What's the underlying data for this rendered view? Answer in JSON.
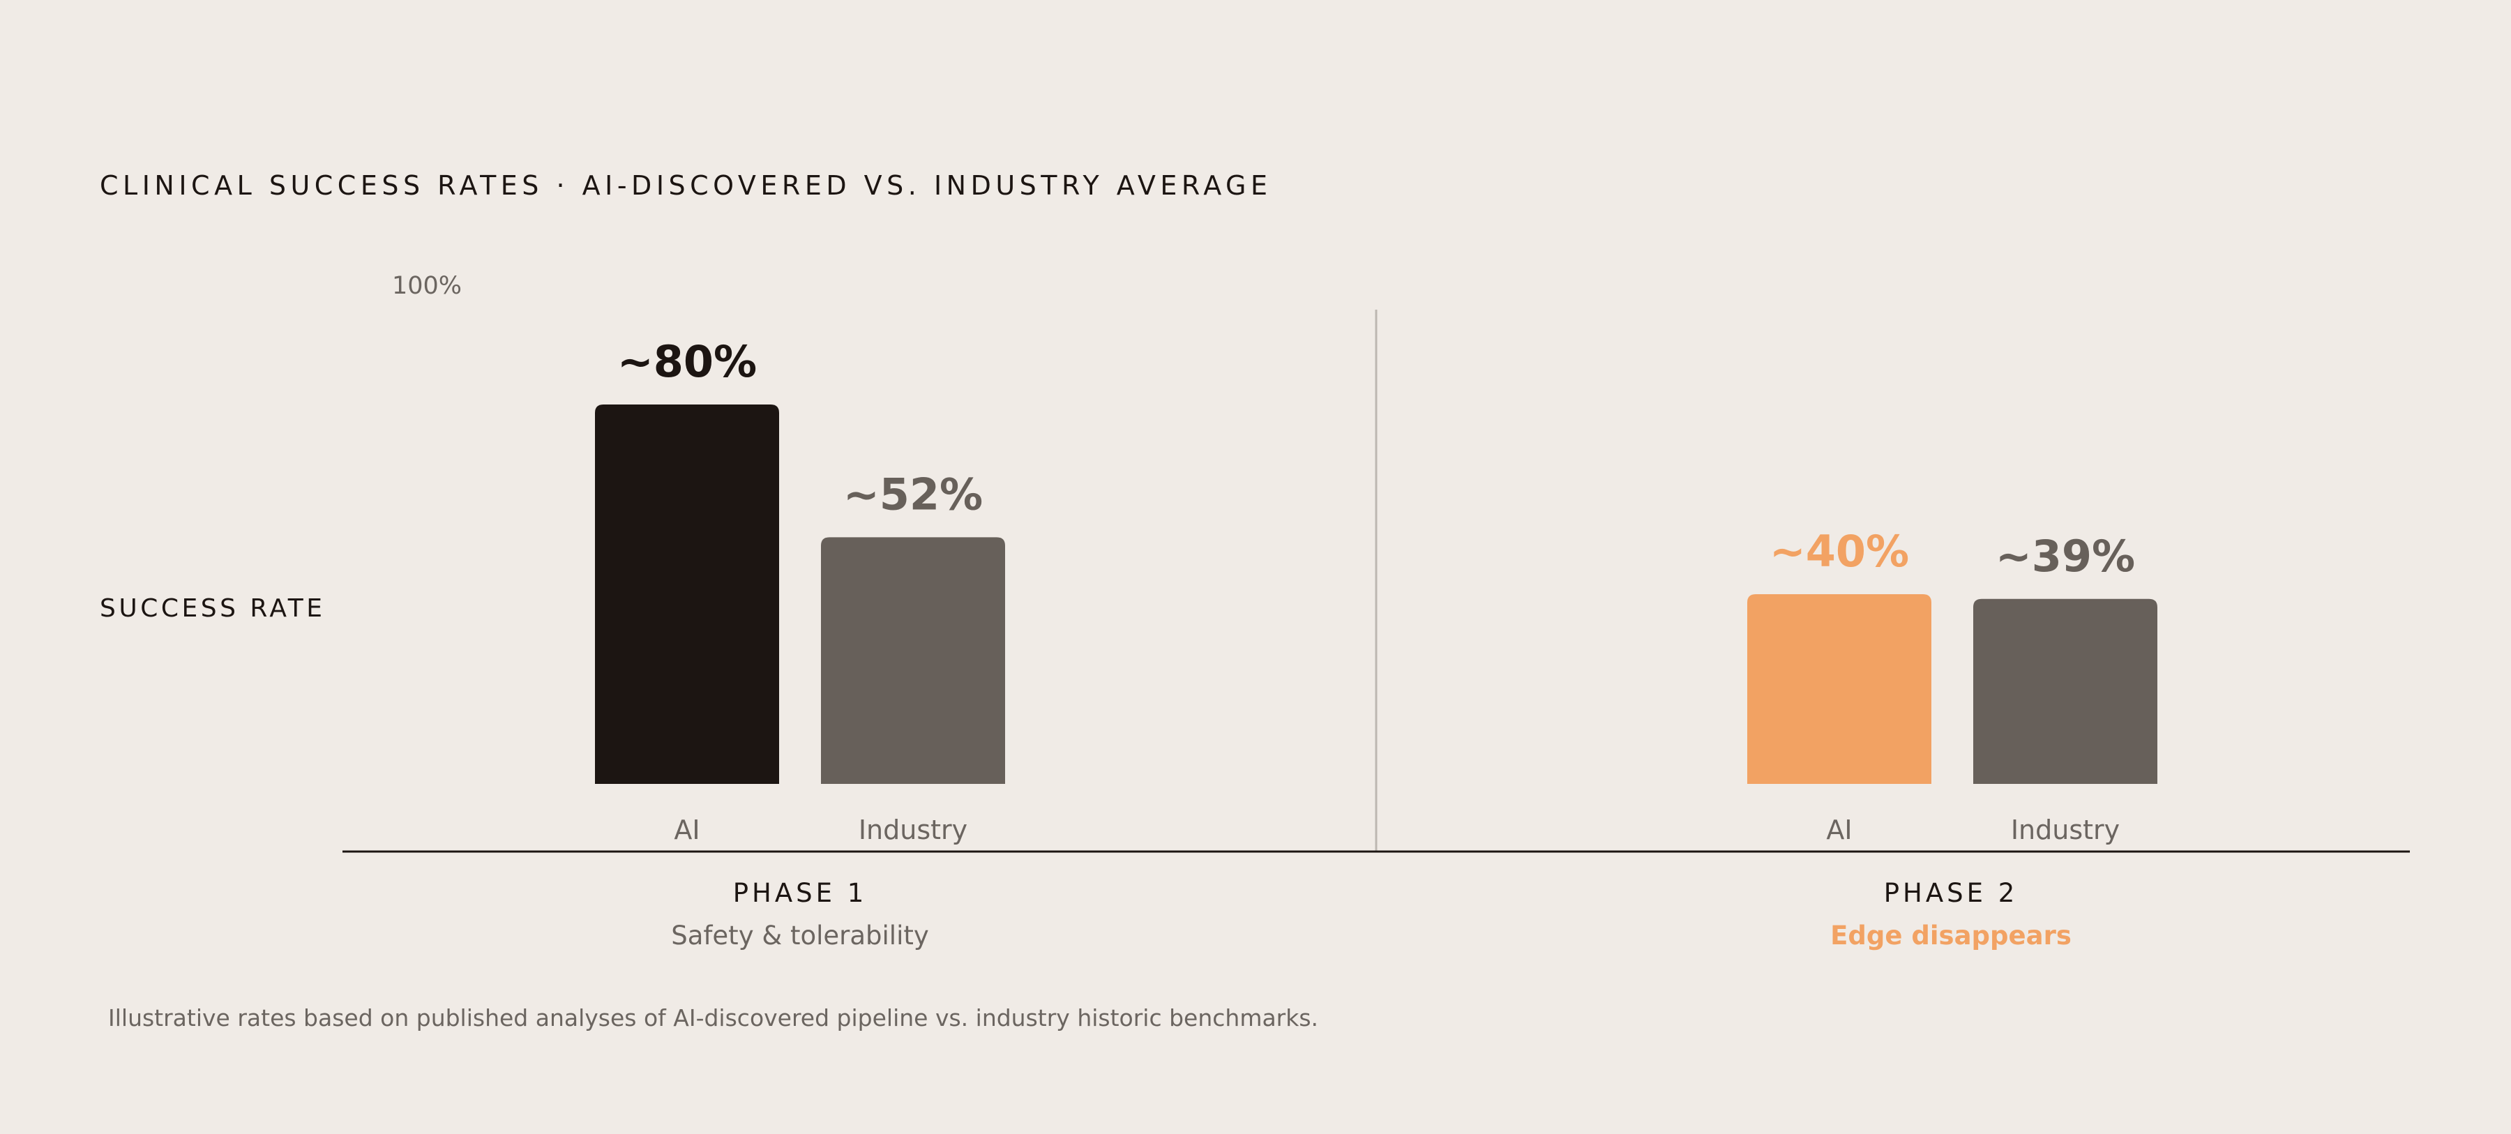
{
  "title": "CLINICAL SUCCESS RATES · AI-DISCOVERED VS. INDUSTRY AVERAGE",
  "y_axis_label": "SUCCESS RATE",
  "y_max_label": "100%",
  "footnote": "Illustrative rates based on published analyses of AI-discovered pipeline vs. industry historic benchmarks.",
  "colors": {
    "background": "#F0EBE6",
    "ai_phase1": "#1C1512",
    "industry": "#67605A",
    "ai_phase2": "#F2A263",
    "axis": "#1C1512",
    "divider": "#BDB7B1",
    "muted_text": "#6B6560"
  },
  "phases": [
    {
      "title": "PHASE 1",
      "subtitle": "Safety & tolerability"
    },
    {
      "title": "PHASE 2",
      "subtitle": "Edge disappears"
    }
  ],
  "chart_data": {
    "type": "bar",
    "title": "CLINICAL SUCCESS RATES · AI-DISCOVERED VS. INDUSTRY AVERAGE",
    "ylabel": "SUCCESS RATE",
    "ylim": [
      0,
      100
    ],
    "grid": false,
    "groups": [
      {
        "name": "PHASE 1",
        "subtitle": "Safety & tolerability",
        "bars": [
          {
            "category": "AI",
            "value": 80,
            "label": "~80%",
            "color": "#1C1512",
            "label_color": "#1C1512"
          },
          {
            "category": "Industry",
            "value": 52,
            "label": "~52%",
            "color": "#67605A",
            "label_color": "#67605A"
          }
        ]
      },
      {
        "name": "PHASE 2",
        "subtitle": "Edge disappears",
        "bars": [
          {
            "category": "AI",
            "value": 40,
            "label": "~40%",
            "color": "#F2A263",
            "label_color": "#F2A263"
          },
          {
            "category": "Industry",
            "value": 39,
            "label": "~39%",
            "color": "#67605A",
            "label_color": "#67605A"
          }
        ]
      }
    ]
  }
}
